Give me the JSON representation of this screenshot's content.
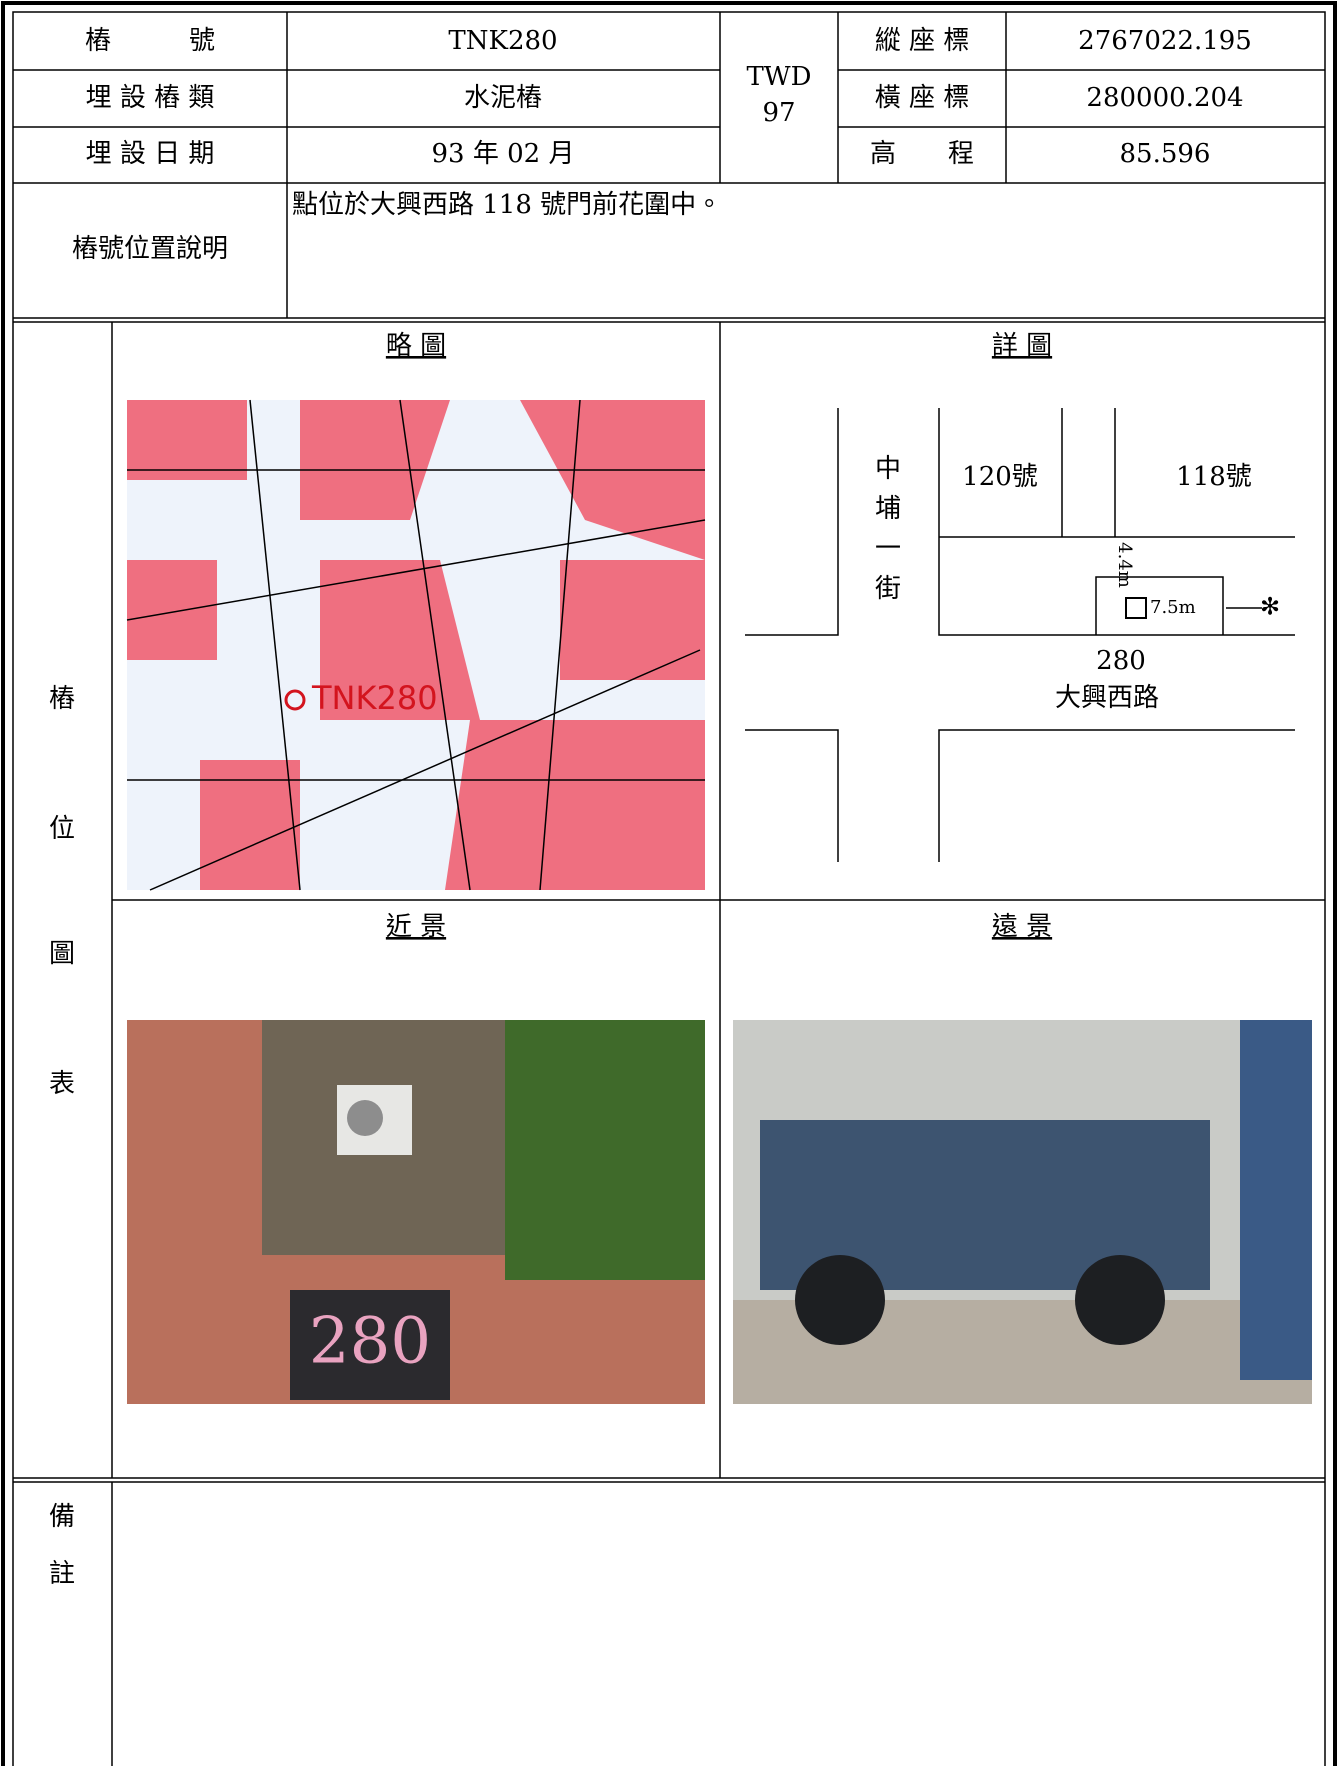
{
  "info": {
    "pile_no_label": "樁　　　號",
    "pile_no": "TNK280",
    "type_label": "埋 設 樁 類",
    "type": "水泥樁",
    "date_label": "埋 設 日 期",
    "date": "93 年 02 月",
    "datum": [
      "TWD",
      "97"
    ],
    "north_label": "縱 座 標",
    "north": "2767022.195",
    "east_label": "橫 座 標",
    "east": "280000.204",
    "elev_label": "高　　程",
    "elev": "85.596",
    "desc_label": "樁號位置說明",
    "desc": "點位於大興西路 118 號門前花圍中。"
  },
  "figures": {
    "side_label": [
      "樁",
      "位",
      "圖",
      "表"
    ],
    "sketch_title": "略 圖",
    "detail_title": "詳 圖",
    "near_title": "近 景",
    "far_title": "遠 景",
    "map_label": "TNK280",
    "detail": {
      "street_v": [
        "中",
        "埔",
        "一",
        "街"
      ],
      "no120": "120號",
      "no118": "118號",
      "dist_a": "4.4m",
      "dist_b": "7.5m",
      "pile": "280",
      "street_h": "大興西路"
    },
    "near_marker": "280"
  },
  "remarks": {
    "label": [
      "備",
      "註"
    ]
  }
}
